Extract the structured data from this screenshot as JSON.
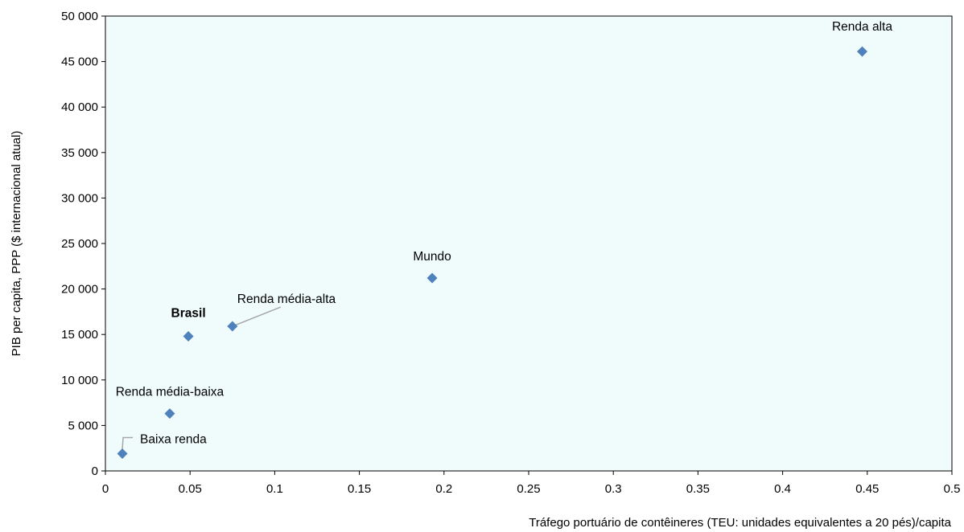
{
  "chart_data": {
    "type": "scatter",
    "title": "",
    "xlabel": "Tráfego portuário de contêineres (TEU: unidades equivalentes a 20 pés)/capita",
    "ylabel": "PIB per capita, PPP ($ internacional atual)",
    "xlim": [
      0,
      0.5
    ],
    "ylim": [
      0,
      50000
    ],
    "x_ticks": [
      0,
      0.05,
      0.1,
      0.15,
      0.2,
      0.25,
      0.3,
      0.35,
      0.4,
      0.45,
      0.5
    ],
    "x_tick_labels": [
      "0",
      "0.05",
      "0.1",
      "0.15",
      "0.2",
      "0.25",
      "0.3",
      "0.35",
      "0.4",
      "0.45",
      "0.5"
    ],
    "y_ticks": [
      0,
      5000,
      10000,
      15000,
      20000,
      25000,
      30000,
      35000,
      40000,
      45000,
      50000
    ],
    "y_tick_labels": [
      "0",
      "5 000",
      "10 000",
      "15 000",
      "20 000",
      "25 000",
      "30 000",
      "35 000",
      "40 000",
      "45 000",
      "50 000"
    ],
    "grid": false,
    "plot_background": "#f0fcfc",
    "marker_color": "#4f81bd",
    "axis_color": "#000000",
    "leader_line_color": "#a6a6a6",
    "points": [
      {
        "label": "Baixa renda",
        "x": 0.01,
        "y": 1900,
        "bold": false
      },
      {
        "label": "Renda média-baixa",
        "x": 0.038,
        "y": 6300,
        "bold": false
      },
      {
        "label": "Brasil",
        "x": 0.049,
        "y": 14800,
        "bold": true
      },
      {
        "label": "Renda média-alta",
        "x": 0.075,
        "y": 15900,
        "bold": false
      },
      {
        "label": "Mundo",
        "x": 0.193,
        "y": 21200,
        "bold": false
      },
      {
        "label": "Renda alta",
        "x": 0.447,
        "y": 46100,
        "bold": false
      }
    ]
  }
}
